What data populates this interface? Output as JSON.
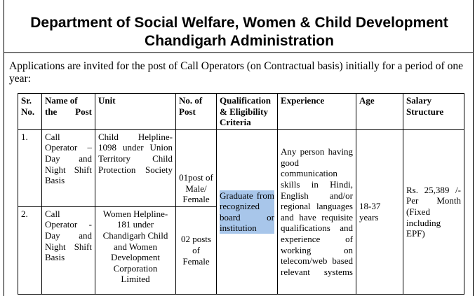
{
  "header": {
    "line1": "Department of Social Welfare, Women & Child Development",
    "line2": "Chandigarh Administration"
  },
  "intro_text": "Applications are invited for the post of Call Operators (on Contractual basis) initially for a period of one year:",
  "table": {
    "headers": {
      "sr": "Sr. No.",
      "name": "Name of the Post",
      "unit": "Unit",
      "posts": "No. of Post",
      "qualification": "Qualification & Eligibility Criteria",
      "experience": "Experience",
      "age": "Age",
      "salary": "Salary Structure"
    },
    "rows": [
      {
        "sr": "1.",
        "name": "Call Operator – Day and Night Shift Basis",
        "unit": "Child Helpline-1098 under Union Territory Child Protection Society",
        "posts": "01post of Male/ Female"
      },
      {
        "sr": "2.",
        "name": "Call Operator - Day and Night Shift Basis",
        "unit": "Women Helpline-181 under Chandigarh Child and Women Development Corporation Limited",
        "posts": "02 posts of Female"
      }
    ],
    "shared": {
      "qualification": "Graduate from recognized board or institution",
      "experience": "Any person having good communication skills in Hindi, English and/or regional languages and have requisite qualifications and experience of working on telecom/web based relevant systems",
      "age": "18-37 years",
      "salary": "Rs. 25,389 /- Per Month (Fixed including EPF)"
    }
  }
}
